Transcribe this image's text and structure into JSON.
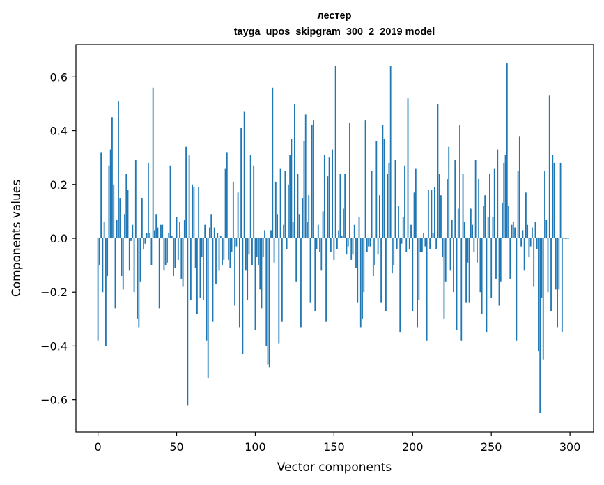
{
  "chart_data": {
    "type": "bar",
    "title": "лестер",
    "subtitle": "tayga_upos_skipgram_300_2_2019 model",
    "xlabel": "Vector components",
    "ylabel": "Components values",
    "xlim": [
      -14,
      315
    ],
    "ylim": [
      -0.72,
      0.72
    ],
    "xticks": [
      0,
      50,
      100,
      150,
      200,
      250,
      300
    ],
    "xtick_labels": [
      "0",
      "50",
      "100",
      "150",
      "200",
      "250",
      "300"
    ],
    "yticks": [
      -0.6,
      -0.4,
      -0.2,
      0.0,
      0.2,
      0.4,
      0.6
    ],
    "ytick_labels": [
      "−0.6",
      "−0.4",
      "−0.2",
      "0.0",
      "0.2",
      "0.4",
      "0.6"
    ],
    "color": "#1f77b4",
    "grid": false,
    "x": "0..299",
    "values": [
      -0.38,
      -0.1,
      0.32,
      -0.2,
      0.06,
      -0.4,
      -0.14,
      0.27,
      0.33,
      0.45,
      0.2,
      -0.26,
      0.07,
      0.51,
      0.15,
      -0.14,
      -0.19,
      0.09,
      0.24,
      0.18,
      -0.12,
      -0.01,
      0.05,
      -0.2,
      0.29,
      -0.3,
      -0.33,
      -0.16,
      0.15,
      -0.04,
      -0.02,
      0.02,
      0.28,
      0.02,
      -0.1,
      0.56,
      0.03,
      0.09,
      0.04,
      -0.26,
      0.05,
      0.05,
      -0.12,
      -0.1,
      -0.09,
      0.02,
      0.27,
      0.01,
      -0.14,
      -0.11,
      0.08,
      -0.08,
      0.06,
      -0.15,
      -0.18,
      0.07,
      0.34,
      -0.62,
      0.31,
      -0.23,
      0.2,
      0.19,
      -0.11,
      -0.28,
      0.19,
      -0.22,
      -0.07,
      -0.23,
      0.05,
      -0.38,
      -0.52,
      0.04,
      0.09,
      -0.31,
      0.04,
      -0.17,
      0.02,
      -0.12,
      0.01,
      -0.1,
      -0.08,
      0.26,
      0.32,
      -0.08,
      -0.11,
      -0.05,
      0.21,
      -0.25,
      -0.03,
      0.17,
      -0.33,
      0.41,
      -0.43,
      0.47,
      -0.12,
      -0.23,
      -0.06,
      0.31,
      -0.1,
      0.27,
      -0.34,
      -0.07,
      -0.1,
      -0.19,
      -0.26,
      -0.07,
      0.03,
      -0.4,
      -0.47,
      -0.48,
      0.03,
      0.56,
      -0.09,
      0.21,
      0.09,
      -0.39,
      0.26,
      -0.31,
      0.05,
      0.25,
      -0.04,
      0.2,
      0.31,
      0.37,
      0.06,
      0.5,
      -0.16,
      0.24,
      0.09,
      -0.33,
      0.15,
      0.36,
      0.46,
      0.06,
      0.16,
      -0.24,
      0.42,
      0.44,
      -0.27,
      -0.04,
      0.05,
      -0.05,
      -0.12,
      0.1,
      0.31,
      -0.31,
      0.23,
      0.3,
      -0.05,
      0.33,
      -0.08,
      0.64,
      -0.04,
      0.03,
      0.24,
      0.01,
      0.11,
      0.24,
      -0.06,
      -0.03,
      0.43,
      -0.08,
      -0.06,
      0.05,
      -0.11,
      -0.24,
      0.08,
      -0.33,
      -0.3,
      -0.2,
      0.44,
      -0.05,
      -0.03,
      -0.03,
      0.25,
      -0.14,
      -0.1,
      0.36,
      -0.06,
      0.16,
      -0.24,
      0.42,
      0.37,
      -0.27,
      0.24,
      0.28,
      0.64,
      -0.13,
      -0.1,
      0.29,
      -0.04,
      0.12,
      -0.35,
      -0.02,
      0.08,
      0.27,
      -0.05,
      0.52,
      -0.04,
      0.05,
      -0.27,
      0.17,
      0.26,
      -0.33,
      -0.23,
      -0.05,
      -0.05,
      0.02,
      -0.03,
      -0.38,
      0.18,
      -0.04,
      0.18,
      0.02,
      0.19,
      -0.04,
      0.5,
      0.24,
      0.16,
      -0.07,
      -0.3,
      -0.16,
      0.22,
      0.34,
      -0.12,
      0.07,
      -0.2,
      0.29,
      -0.34,
      0.11,
      0.42,
      -0.38,
      0.24,
      0.06,
      -0.24,
      -0.09,
      -0.24,
      0.11,
      0.05,
      -0.05,
      0.29,
      -0.09,
      0.22,
      -0.2,
      -0.28,
      0.12,
      0.16,
      -0.35,
      0.08,
      0.24,
      -0.22,
      0.08,
      0.26,
      -0.15,
      0.33,
      -0.25,
      -0.16,
      0.13,
      0.28,
      0.31,
      0.65,
      0.12,
      -0.15,
      0.05,
      0.06,
      0.04,
      -0.38,
      0.25,
      0.38,
      -0.03,
      0.03,
      -0.12,
      0.17,
      0.05,
      -0.07,
      -0.03,
      0.04,
      -0.18,
      0.06,
      -0.04,
      -0.42,
      -0.65,
      -0.22,
      -0.45,
      0.25,
      0.07,
      -0.2,
      0.53,
      -0.27,
      0.31,
      0.28,
      -0.19,
      -0.33,
      -0.19,
      0.28,
      -0.35,
      0.0,
      0.0,
      0.0,
      0.0
    ]
  }
}
